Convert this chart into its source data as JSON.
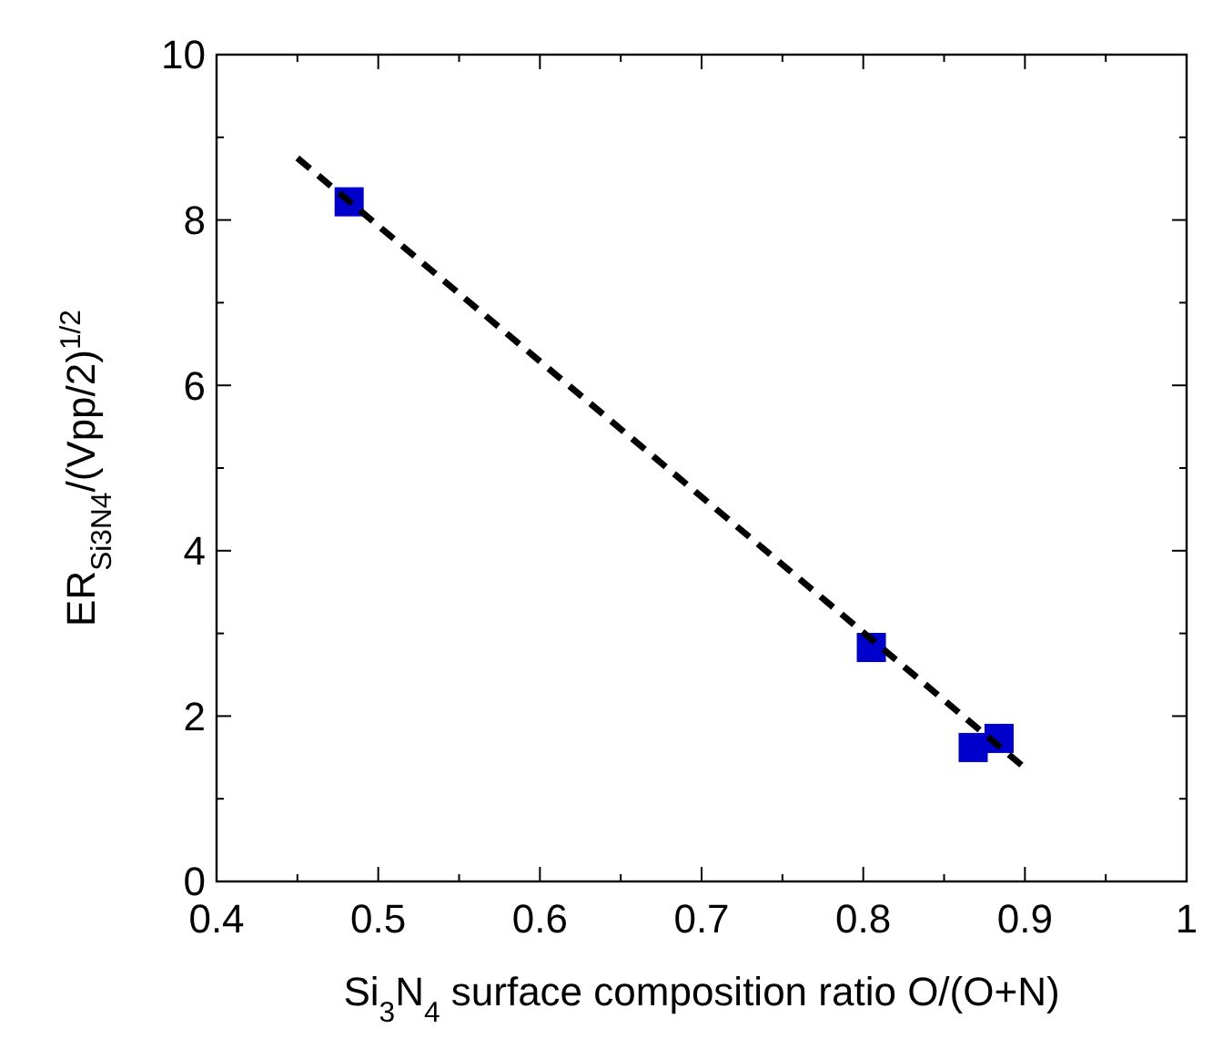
{
  "chart_data": {
    "type": "scatter",
    "xlabel": "Si$_{3}$N$_{4}$ surface composition ratio O/(O+N)",
    "ylabel": "ER$_{Si3N4}$/(Vpp/2)$^{1/2}$",
    "xlim": [
      0.4,
      1
    ],
    "ylim": [
      0,
      10
    ],
    "xticks": [
      0.4,
      0.5,
      0.6,
      0.7,
      0.8,
      0.9,
      1
    ],
    "yticks": [
      0,
      2,
      4,
      6,
      8,
      10
    ],
    "grid": false,
    "series": [
      {
        "color": "#0000cc",
        "marker": "square",
        "x": [
          0.482,
          0.805,
          0.868,
          0.884
        ],
        "values": [
          8.22,
          2.83,
          1.62,
          1.73
        ]
      },
      {
        "type": "line",
        "color": "#000000",
        "line_style": "dashed",
        "marker": "none",
        "x": [
          0.45,
          0.902
        ],
        "values": [
          8.75,
          1.34
        ]
      }
    ]
  }
}
